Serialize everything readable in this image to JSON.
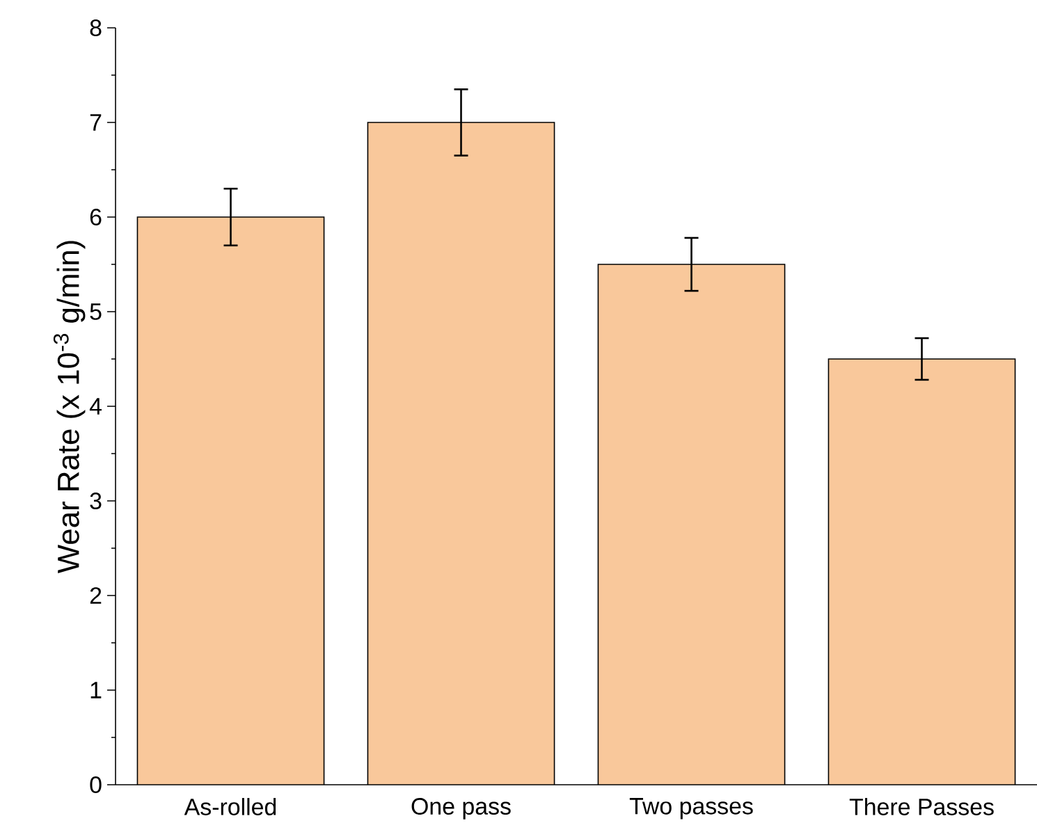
{
  "chart_data": {
    "type": "bar",
    "ylabel": "Wear Rate (x 10$^{-3}$ g/min)",
    "categories": [
      "As-rolled",
      "One pass",
      "Two passes",
      "There Passes"
    ],
    "values": [
      6.0,
      7.0,
      5.5,
      4.5
    ],
    "errors": [
      0.3,
      0.35,
      0.28,
      0.22
    ],
    "color": "#f9c89b",
    "ylim": [
      0,
      8
    ],
    "yticks": [
      0,
      1,
      2,
      3,
      4,
      5,
      6,
      7,
      8
    ]
  }
}
